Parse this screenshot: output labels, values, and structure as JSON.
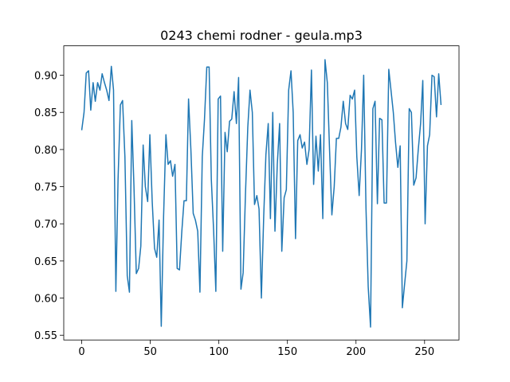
{
  "chart_data": {
    "type": "line",
    "title": "0243 chemi rodner - geula.mp3",
    "x": [
      0,
      1.7,
      3.3,
      5.0,
      6.6,
      8.3,
      9.9,
      11.6,
      13.3,
      14.9,
      16.6,
      18.2,
      19.9,
      21.6,
      23.2,
      24.9,
      26.5,
      28.2,
      29.8,
      31.5,
      33.2,
      34.8,
      36.5,
      38.1,
      39.8,
      41.5,
      43.1,
      44.8,
      46.4,
      48.1,
      49.7,
      51.4,
      53.1,
      54.7,
      56.4,
      58.0,
      59.7,
      61.4,
      63.0,
      64.7,
      66.3,
      68.0,
      69.6,
      71.3,
      73.0,
      74.6,
      76.3,
      77.9,
      79.6,
      81.3,
      82.9,
      84.6,
      86.2,
      87.9,
      89.5,
      91.2,
      92.9,
      94.5,
      96.2,
      97.8,
      99.5,
      101.2,
      102.8,
      104.5,
      106.1,
      107.8,
      109.4,
      111.1,
      112.8,
      114.4,
      116.1,
      117.7,
      119.4,
      121.1,
      122.7,
      124.4,
      126.0,
      127.7,
      129.3,
      131.0,
      132.7,
      134.3,
      136.0,
      137.6,
      139.3,
      140.9,
      142.6,
      144.3,
      145.9,
      147.6,
      149.2,
      150.9,
      152.6,
      154.2,
      155.9,
      157.5,
      159.2,
      160.8,
      162.5,
      164.2,
      165.8,
      167.5,
      169.1,
      170.8,
      172.5,
      174.1,
      175.8,
      177.4,
      179.1,
      180.7,
      182.4,
      184.1,
      185.7,
      187.4,
      189.0,
      190.7,
      192.4,
      194.0,
      195.7,
      197.3,
      199.0,
      200.6,
      202.3,
      204.0,
      205.6,
      207.3,
      208.9,
      210.6,
      212.3,
      213.9,
      215.6,
      217.2,
      218.9,
      220.5,
      222.2,
      223.9,
      225.5,
      227.2,
      228.8,
      230.5,
      232.2,
      233.8,
      235.5,
      237.1,
      238.8,
      240.4,
      242.1,
      243.8,
      245.4,
      247.1,
      248.7,
      250.4,
      252.1,
      253.7,
      255.4,
      257.0,
      258.7,
      260.3,
      262.0
    ],
    "series": [
      {
        "color": "#1f77b4",
        "values": [
          0.826,
          0.85,
          0.903,
          0.906,
          0.853,
          0.89,
          0.865,
          0.89,
          0.88,
          0.902,
          0.89,
          0.88,
          0.866,
          0.912,
          0.88,
          0.609,
          0.76,
          0.86,
          0.866,
          0.79,
          0.63,
          0.608,
          0.839,
          0.75,
          0.633,
          0.64,
          0.67,
          0.806,
          0.75,
          0.73,
          0.82,
          0.73,
          0.667,
          0.655,
          0.705,
          0.562,
          0.71,
          0.82,
          0.78,
          0.785,
          0.764,
          0.78,
          0.64,
          0.638,
          0.69,
          0.731,
          0.731,
          0.868,
          0.8,
          0.714,
          0.705,
          0.69,
          0.608,
          0.79,
          0.84,
          0.911,
          0.911,
          0.76,
          0.69,
          0.609,
          0.868,
          0.872,
          0.663,
          0.823,
          0.797,
          0.838,
          0.841,
          0.878,
          0.835,
          0.897,
          0.612,
          0.634,
          0.74,
          0.83,
          0.88,
          0.85,
          0.726,
          0.738,
          0.72,
          0.6,
          0.71,
          0.793,
          0.835,
          0.707,
          0.85,
          0.69,
          0.78,
          0.835,
          0.663,
          0.735,
          0.746,
          0.88,
          0.906,
          0.85,
          0.68,
          0.812,
          0.82,
          0.802,
          0.81,
          0.78,
          0.8,
          0.907,
          0.753,
          0.818,
          0.771,
          0.82,
          0.707,
          0.921,
          0.89,
          0.8,
          0.712,
          0.75,
          0.815,
          0.815,
          0.83,
          0.865,
          0.835,
          0.827,
          0.873,
          0.868,
          0.88,
          0.79,
          0.738,
          0.8,
          0.9,
          0.72,
          0.615,
          0.561,
          0.855,
          0.865,
          0.727,
          0.842,
          0.84,
          0.728,
          0.728,
          0.908,
          0.88,
          0.85,
          0.81,
          0.776,
          0.805,
          0.587,
          0.62,
          0.65,
          0.855,
          0.85,
          0.752,
          0.762,
          0.8,
          0.835,
          0.893,
          0.7,
          0.805,
          0.82,
          0.9,
          0.898,
          0.844,
          0.902,
          0.86
        ]
      }
    ],
    "xlim": [
      -13.1,
      275.1
    ],
    "ylim": [
      0.5436,
      0.9396
    ],
    "xticks": [
      0,
      50,
      100,
      150,
      200,
      250
    ],
    "yticks": [
      0.55,
      {
        "value": 0.6,
        "label": "0.60"
      },
      0.65,
      {
        "value": 0.7,
        "label": "0.70"
      },
      0.75,
      {
        "value": 0.8,
        "label": "0.80"
      },
      0.85,
      {
        "value": 0.9,
        "label": "0.90"
      }
    ]
  }
}
